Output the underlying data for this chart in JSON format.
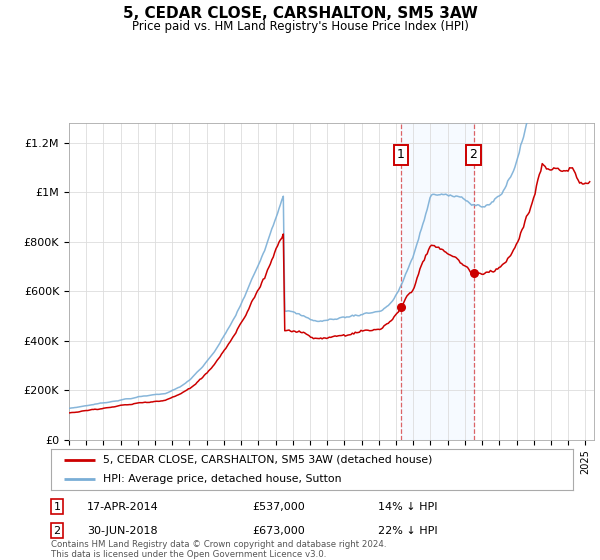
{
  "title": "5, CEDAR CLOSE, CARSHALTON, SM5 3AW",
  "subtitle": "Price paid vs. HM Land Registry's House Price Index (HPI)",
  "ylabel_ticks": [
    "£0",
    "£200K",
    "£400K",
    "£600K",
    "£800K",
    "£1M",
    "£1.2M"
  ],
  "ytick_values": [
    0,
    200000,
    400000,
    600000,
    800000,
    1000000,
    1200000
  ],
  "ylim": [
    0,
    1280000
  ],
  "sale1_date": 2014.29,
  "sale1_price": 537000,
  "sale1_label": "17-APR-2014",
  "sale1_pct": "14% ↓ HPI",
  "sale2_date": 2018.5,
  "sale2_price": 673000,
  "sale2_label": "30-JUN-2018",
  "sale2_pct": "22% ↓ HPI",
  "hpi_color": "#7aaed6",
  "price_color": "#cc0000",
  "bg_color": "#ffffff",
  "plot_bg": "#ffffff",
  "shade_color": "#ddeeff",
  "grid_color": "#dddddd",
  "legend_label1": "5, CEDAR CLOSE, CARSHALTON, SM5 3AW (detached house)",
  "legend_label2": "HPI: Average price, detached house, Sutton",
  "footer": "Contains HM Land Registry data © Crown copyright and database right 2024.\nThis data is licensed under the Open Government Licence v3.0."
}
